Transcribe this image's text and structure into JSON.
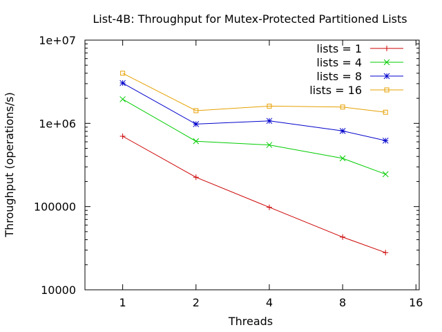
{
  "chart_data": {
    "type": "line",
    "title": "List-4B: Throughput for Mutex-Protected Partitioned Lists",
    "xlabel": "Threads",
    "ylabel": "Throughput (operations/s)",
    "x_scale": "log2",
    "y_scale": "log10",
    "xlim": [
      0.7,
      16.5
    ],
    "ylim": [
      10000,
      10000000
    ],
    "x_ticks": [
      1,
      2,
      4,
      8,
      16
    ],
    "x_tick_labels": [
      "1",
      "2",
      "4",
      "8",
      "16"
    ],
    "y_ticks": [
      10000,
      100000,
      1000000,
      10000000
    ],
    "y_tick_labels": [
      "10000",
      "100000",
      "1e+06",
      "1e+07"
    ],
    "grid": false,
    "legend_position": "top-right",
    "x": [
      1,
      2,
      4,
      8,
      12
    ],
    "series": [
      {
        "name": "lists = 1",
        "color": "#cc0000",
        "marker": "plus",
        "values": [
          700000,
          225000,
          98000,
          43000,
          28000
        ]
      },
      {
        "name": "lists = 4",
        "color": "#00cc00",
        "marker": "cross",
        "values": [
          1950000,
          610000,
          550000,
          380000,
          245000
        ]
      },
      {
        "name": "lists = 8",
        "color": "#0000cc",
        "marker": "star",
        "values": [
          3050000,
          980000,
          1070000,
          810000,
          620000
        ]
      },
      {
        "name": "lists = 16",
        "color": "#e6a000",
        "marker": "square",
        "values": [
          4000000,
          1420000,
          1610000,
          1570000,
          1360000
        ]
      }
    ]
  }
}
